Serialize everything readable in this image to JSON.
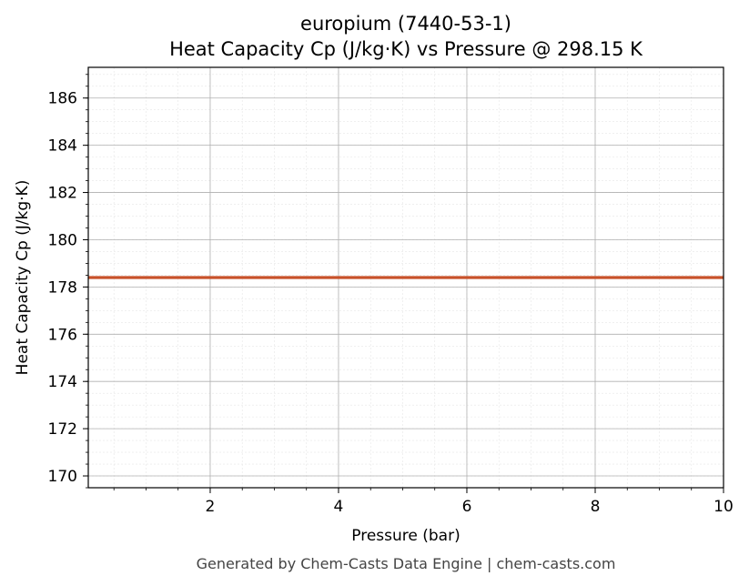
{
  "chart_data": {
    "type": "line",
    "title": "europium (7440-53-1)",
    "subtitle": "Heat Capacity Cp (J/kg·K) vs Pressure @ 298.15 K",
    "xlabel": "Pressure (bar)",
    "ylabel": "Heat Capacity Cp (J/kg·K)",
    "xlim": [
      0.1,
      10
    ],
    "ylim": [
      169.5,
      187.3
    ],
    "xticks": [
      2,
      4,
      6,
      8,
      10
    ],
    "yticks": [
      170,
      172,
      174,
      176,
      178,
      180,
      182,
      184,
      186
    ],
    "grid": true,
    "minor_grid": true,
    "series": [
      {
        "color": "#c8522a",
        "x": [
          0.1,
          10
        ],
        "y": [
          178.4,
          178.4
        ]
      }
    ]
  },
  "footer": "Generated by Chem-Casts Data Engine | chem-casts.com"
}
